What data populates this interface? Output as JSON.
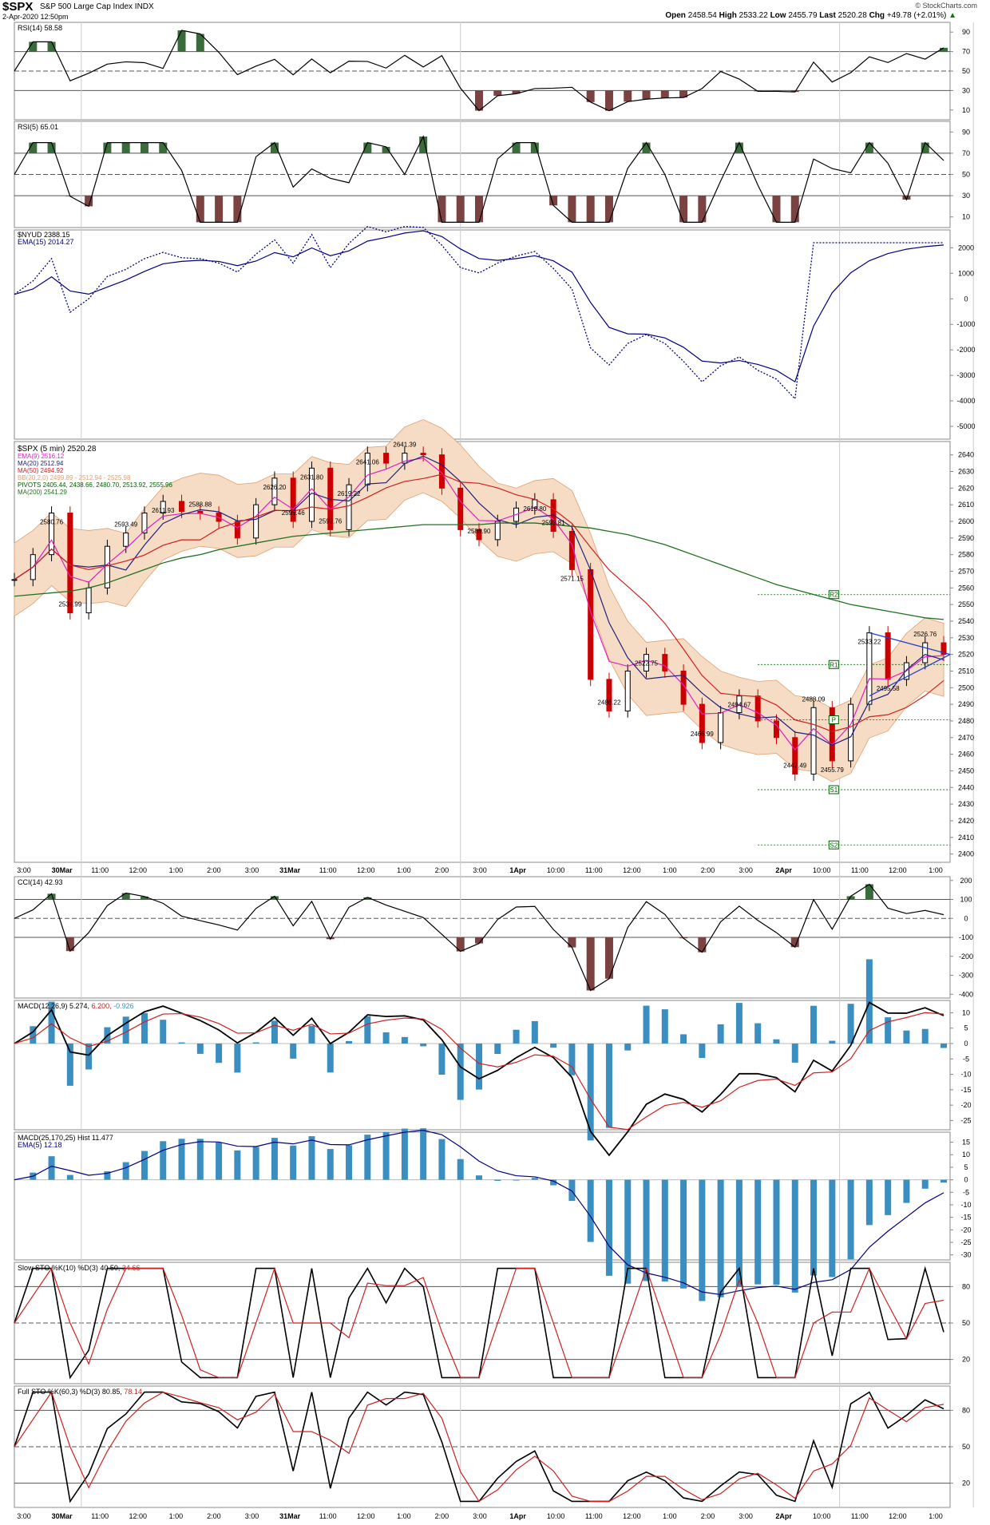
{
  "header": {
    "symbol": "$SPX",
    "name": "S&P 500 Large Cap Index",
    "exchange": "INDX",
    "date": "2-Apr-2020 12:50pm",
    "open_label": "Open",
    "open": "2458.54",
    "high_label": "High",
    "high": "2533.22",
    "low_label": "Low",
    "low": "2455.79",
    "last_label": "Last",
    "last": "2520.28",
    "chg_label": "Chg",
    "chg": "+49.78 (+2.01%)",
    "chg_arrow": "▲",
    "copyright": "© StockCharts.com"
  },
  "x_axis": {
    "ticks": [
      "3:00",
      "30Mar",
      "11:00",
      "12:00",
      "1:00",
      "2:00",
      "3:00",
      "31Mar",
      "11:00",
      "12:00",
      "1:00",
      "2:00",
      "3:00",
      "1Apr",
      "10:00",
      "11:00",
      "12:00",
      "1:00",
      "2:00",
      "3:00",
      "2Apr",
      "10:00",
      "11:00",
      "12:00",
      "1:00"
    ],
    "bold": [
      "30Mar",
      "31Mar",
      "1Apr",
      "2Apr"
    ]
  },
  "colors": {
    "price_up": "#000000",
    "price_down": "#cc0000",
    "ema9": "#e020c0",
    "ma20": "#202080",
    "ma50": "#d02020",
    "bb_fill": "#f6dcc4",
    "bb_line": "#e0a070",
    "pivots": "#006000",
    "ma200": "#207020",
    "osc_pos": "#3a6b3a",
    "osc_neg": "#7b4242",
    "macd_hist": "#3a8fc0",
    "nyud": "#000080",
    "sto_d": "#d02020"
  },
  "panels": {
    "rsi14": {
      "label": "RSI(14) 58.58",
      "ticks": [
        "90",
        "70",
        "50",
        "30",
        "10"
      ]
    },
    "rsi5": {
      "label": "RSI(5) 65.01",
      "ticks": [
        "90",
        "70",
        "50",
        "30",
        "10"
      ]
    },
    "nyud": {
      "labels": [
        "$NYUD 2388.15",
        "EMA(15) 2014.27"
      ],
      "ticks": [
        "2000",
        "1000",
        "0",
        "-1000",
        "-2000",
        "-3000",
        "-4000",
        "-5000"
      ]
    },
    "price": {
      "labels": [
        "$SPX (5 min) 2520.28",
        "EMA(9) 2516.12",
        "MA(20) 2512.94",
        "MA(50) 2494.92",
        "BB(20,2.0) 2499.89 - 2512.94 - 2525.98",
        "PIVOTS 2405.44, 2438.66, 2480.70, 2513.92, 2555.96",
        "MA(200) 2541.29"
      ],
      "ticks": [
        "2640",
        "2630",
        "2620",
        "2610",
        "2600",
        "2590",
        "2580",
        "2570",
        "2560",
        "2550",
        "2540",
        "2530",
        "2520",
        "2510",
        "2500",
        "2490",
        "2480",
        "2470",
        "2460",
        "2450",
        "2440",
        "2430",
        "2420",
        "2410",
        "2400"
      ],
      "annotations": [
        "2534.99",
        "2580.76",
        "2593.49",
        "2611.93",
        "2588.88",
        "2626.20",
        "2599.46",
        "2631.80",
        "2592.76",
        "2641.06",
        "2641.39",
        "2619.22",
        "2588.90",
        "2613.80",
        "2593.81",
        "2571.15",
        "2486.22",
        "2522.75",
        "2466.99",
        "2494.67",
        "2488.09",
        "2455.79",
        "2447.49",
        "2533.22",
        "2526.76",
        "2495.58"
      ],
      "pivot_tags": [
        "R2",
        "R1",
        "P",
        "S1",
        "S2"
      ]
    },
    "cci": {
      "label": "CCI(14) 42.93",
      "ticks": [
        "200",
        "100",
        "0",
        "-100",
        "-200",
        "-300",
        "-400"
      ]
    },
    "macd1": {
      "label_prefix": "MACD(12,26,9)",
      "macd": "5.274,",
      "signal": "6.200,",
      "hist": "-0.926",
      "ticks": [
        "10",
        "5",
        "0",
        "-5",
        "-10",
        "-15",
        "-20",
        "-25"
      ]
    },
    "macd2": {
      "labels": [
        "MACD(25,170,25) Hist 11.477",
        "EMA(5) 12.18"
      ],
      "ticks": [
        "15",
        "10",
        "5",
        "0",
        "-5",
        "-10",
        "-15",
        "-20",
        "-25",
        "-30"
      ]
    },
    "slowsto": {
      "label_prefix": "Slow STO %K(10) %D(3) 40.50,",
      "d_value": "34.66",
      "ticks": [
        "80",
        "50",
        "20"
      ]
    },
    "fullsto": {
      "label_prefix": "Full STO %K(60,3) %D(3) 80.85,",
      "d_value": "78.14",
      "ticks": [
        "80",
        "50",
        "20"
      ]
    }
  },
  "chart_data": {
    "type": "line",
    "title": "$SPX (5 min) 2520.28",
    "xlabel": "",
    "ylabel": "",
    "x_ticks": [
      "3:00",
      "30Mar",
      "11:00",
      "12:00",
      "1:00",
      "2:00",
      "3:00",
      "31Mar",
      "11:00",
      "12:00",
      "1:00",
      "2:00",
      "3:00",
      "1Apr",
      "10:00",
      "11:00",
      "12:00",
      "1:00",
      "2:00",
      "3:00",
      "2Apr",
      "10:00",
      "11:00",
      "12:00",
      "1:00"
    ],
    "ylim": [
      2400,
      2645
    ],
    "series": [
      {
        "name": "$SPX (5 min)",
        "values": [
          2565,
          2580,
          2605,
          2545,
          2560,
          2585,
          2593,
          2605,
          2612,
          2606,
          2605,
          2600,
          2590,
          2610,
          2626,
          2600,
          2632,
          2595,
          2622,
          2641,
          2635,
          2641,
          2640,
          2620,
          2595,
          2589,
          2600,
          2608,
          2613,
          2594,
          2571,
          2505,
          2486,
          2510,
          2520,
          2510,
          2490,
          2467,
          2485,
          2495,
          2480,
          2470,
          2448,
          2488,
          2456,
          2490,
          2533,
          2505,
          2515,
          2527,
          2520
        ]
      },
      {
        "name": "MA(200)",
        "values": [
          2555,
          2556,
          2557,
          2558,
          2560,
          2563,
          2567,
          2571,
          2575,
          2578,
          2580,
          2583,
          2585,
          2587,
          2589,
          2591,
          2592,
          2593,
          2594,
          2595,
          2596,
          2597,
          2598,
          2598,
          2598,
          2598,
          2599,
          2599,
          2599,
          2598,
          2597,
          2596,
          2594,
          2592,
          2589,
          2586,
          2582,
          2578,
          2574,
          2570,
          2566,
          2562,
          2559,
          2556,
          2553,
          2550,
          2548,
          2546,
          2544,
          2542,
          2541
        ]
      }
    ],
    "pivots": [
      2405.44,
      2438.66,
      2480.7,
      2513.92,
      2555.96
    ]
  }
}
